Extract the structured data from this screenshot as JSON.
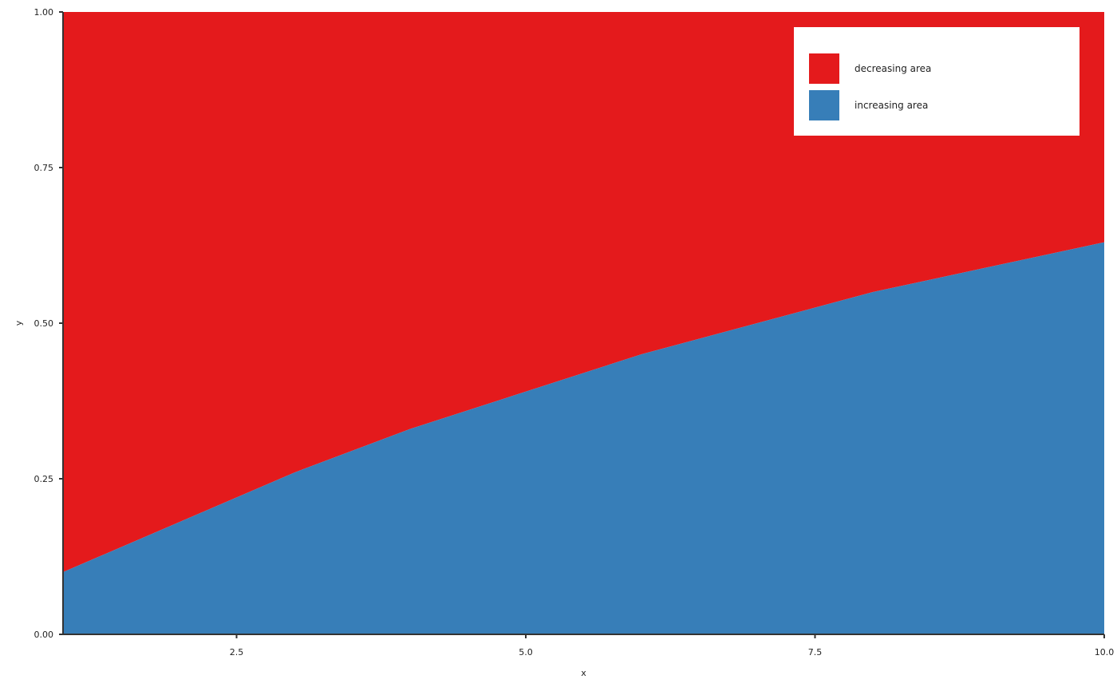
{
  "chart_data": {
    "type": "area",
    "stacked": true,
    "normalized": true,
    "x": [
      1,
      2,
      3,
      4,
      5,
      6,
      7,
      8,
      9,
      10
    ],
    "series": [
      {
        "name": "increasing area",
        "color": "#377eb8",
        "values": [
          0.1,
          0.18,
          0.26,
          0.33,
          0.39,
          0.45,
          0.5,
          0.55,
          0.59,
          0.63
        ]
      },
      {
        "name": "decreasing area",
        "color": "#e41a1c",
        "values": [
          0.9,
          0.82,
          0.74,
          0.67,
          0.61,
          0.55,
          0.5,
          0.45,
          0.41,
          0.37
        ]
      }
    ],
    "xlabel": "x",
    "ylabel": "y",
    "xlim": [
      1,
      10
    ],
    "ylim": [
      0,
      1
    ],
    "xticks": [
      2.5,
      5.0,
      7.5,
      10.0
    ],
    "xtick_labels": [
      "2.5",
      "5.0",
      "7.5",
      "10.0"
    ],
    "yticks": [
      0,
      0.25,
      0.5,
      0.75,
      1.0
    ],
    "ytick_labels": [
      "0.00",
      "0.25",
      "0.50",
      "0.75",
      "1.00"
    ],
    "grid": false,
    "legend_position": "top-right",
    "legend_order": [
      "decreasing area",
      "increasing area"
    ]
  }
}
